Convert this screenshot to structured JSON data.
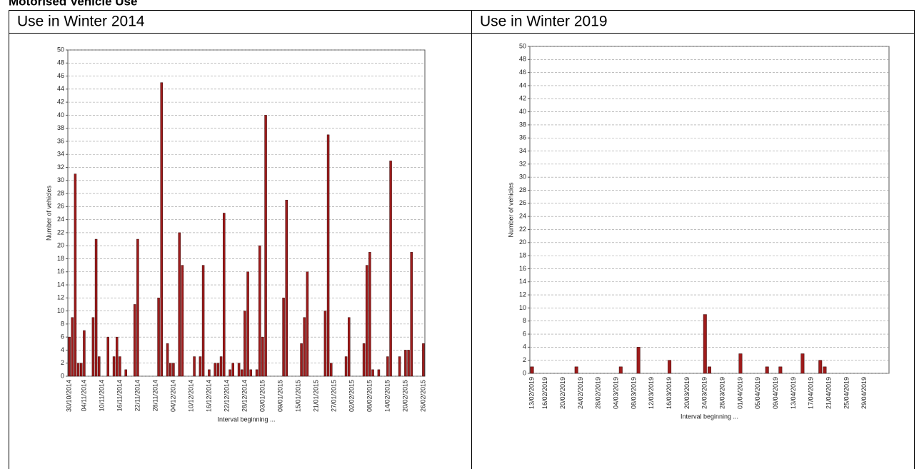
{
  "heading": "Motorised Vehicle Use",
  "table": {
    "headers": [
      "Use in Winter 2014",
      "Use in Winter 2019"
    ]
  },
  "chart_data": [
    {
      "type": "bar",
      "y_label": "Number of vehicles",
      "x_label": "Interval beginning ...",
      "color": "#9e1b1b",
      "grid": true,
      "ylim": [
        0,
        50
      ],
      "yticks": [
        0,
        2,
        4,
        6,
        8,
        10,
        12,
        14,
        16,
        18,
        20,
        22,
        24,
        26,
        28,
        30,
        32,
        34,
        36,
        38,
        40,
        42,
        44,
        46,
        48,
        50
      ],
      "categories": [
        "30/10/2014",
        null,
        null,
        null,
        null,
        "04/11/2014",
        null,
        null,
        null,
        null,
        null,
        "10/11/2014",
        null,
        null,
        null,
        null,
        null,
        "16/11/2014",
        null,
        null,
        null,
        null,
        null,
        "22/11/2014",
        null,
        null,
        null,
        null,
        null,
        "28/11/2014",
        null,
        null,
        null,
        null,
        null,
        "04/12/2014",
        null,
        null,
        null,
        null,
        null,
        "10/12/2014",
        null,
        null,
        null,
        null,
        null,
        "16/12/2014",
        null,
        null,
        null,
        null,
        null,
        "22/12/2014",
        null,
        null,
        null,
        null,
        null,
        "28/12/2014",
        null,
        null,
        null,
        null,
        null,
        "03/01/2015",
        null,
        null,
        null,
        null,
        null,
        "09/01/2015",
        null,
        null,
        null,
        null,
        null,
        "15/01/2015",
        null,
        null,
        null,
        null,
        null,
        "21/01/2015",
        null,
        null,
        null,
        null,
        null,
        "27/01/2015",
        null,
        null,
        null,
        null,
        null,
        "02/02/2015",
        null,
        null,
        null,
        null,
        null,
        "08/02/2015",
        null,
        null,
        null,
        null,
        null,
        "14/02/2015",
        null,
        null,
        null,
        null,
        null,
        "20/02/2015",
        null,
        null,
        null,
        null,
        null,
        "26/02/2015"
      ],
      "values": [
        6,
        9,
        31,
        2,
        2,
        7,
        0,
        0,
        9,
        21,
        3,
        0,
        0,
        6,
        0,
        3,
        6,
        3,
        0,
        1,
        0,
        0,
        11,
        21,
        0,
        0,
        0,
        0,
        0,
        0,
        12,
        45,
        0,
        5,
        2,
        2,
        0,
        22,
        17,
        0,
        0,
        0,
        3,
        0,
        3,
        17,
        0,
        1,
        0,
        2,
        2,
        3,
        25,
        0,
        1,
        2,
        0,
        2,
        1,
        10,
        16,
        1,
        0,
        1,
        20,
        6,
        40,
        0,
        0,
        0,
        0,
        0,
        12,
        27,
        0,
        0,
        0,
        0,
        5,
        9,
        16,
        0,
        0,
        0,
        0,
        0,
        10,
        37,
        2,
        0,
        0,
        0,
        0,
        3,
        9,
        0,
        0,
        0,
        0,
        5,
        17,
        19,
        1,
        0,
        1,
        0,
        0,
        3,
        33,
        0,
        0,
        3,
        0,
        4,
        4,
        19,
        0,
        0,
        0,
        5
      ]
    },
    {
      "type": "bar",
      "y_label": "Number of vehicles",
      "x_label": "Interval beginning ...",
      "color": "#9e1b1b",
      "grid": true,
      "ylim": [
        0,
        50
      ],
      "yticks": [
        0,
        2,
        4,
        6,
        8,
        10,
        12,
        14,
        16,
        18,
        20,
        22,
        24,
        26,
        28,
        30,
        32,
        34,
        36,
        38,
        40,
        42,
        44,
        46,
        48,
        50
      ],
      "categories": [
        "13/02/2019",
        null,
        null,
        "16/02/2019",
        null,
        null,
        null,
        "20/02/2019",
        null,
        null,
        null,
        "24/02/2019",
        null,
        null,
        null,
        "28/02/2019",
        null,
        null,
        null,
        "04/03/2019",
        null,
        null,
        null,
        "08/03/2019",
        null,
        null,
        null,
        "12/03/2019",
        null,
        null,
        null,
        "16/03/2019",
        null,
        null,
        null,
        "20/03/2019",
        null,
        null,
        null,
        "24/03/2019",
        null,
        null,
        null,
        "28/03/2019",
        null,
        null,
        null,
        "01/04/2019",
        null,
        null,
        null,
        "05/04/2019",
        null,
        null,
        null,
        "09/04/2019",
        null,
        null,
        null,
        "13/04/2019",
        null,
        null,
        null,
        "17/04/2019",
        null,
        null,
        null,
        "21/04/2019",
        null,
        null,
        null,
        "25/04/2019",
        null,
        null,
        null,
        "29/04/2019",
        null,
        null,
        null,
        null,
        null
      ],
      "values": [
        1,
        0,
        0,
        0,
        0,
        0,
        0,
        0,
        0,
        0,
        1,
        0,
        0,
        0,
        0,
        0,
        0,
        0,
        0,
        0,
        1,
        0,
        0,
        0,
        4,
        0,
        0,
        0,
        0,
        0,
        0,
        2,
        0,
        0,
        0,
        0,
        0,
        0,
        0,
        9,
        1,
        0,
        0,
        0,
        0,
        0,
        0,
        3,
        0,
        0,
        0,
        0,
        0,
        1,
        0,
        0,
        1,
        0,
        0,
        0,
        0,
        3,
        0,
        0,
        0,
        2,
        1,
        0,
        0,
        0,
        0,
        0,
        0,
        0,
        0,
        0,
        0,
        0,
        0,
        0,
        0
      ]
    }
  ]
}
